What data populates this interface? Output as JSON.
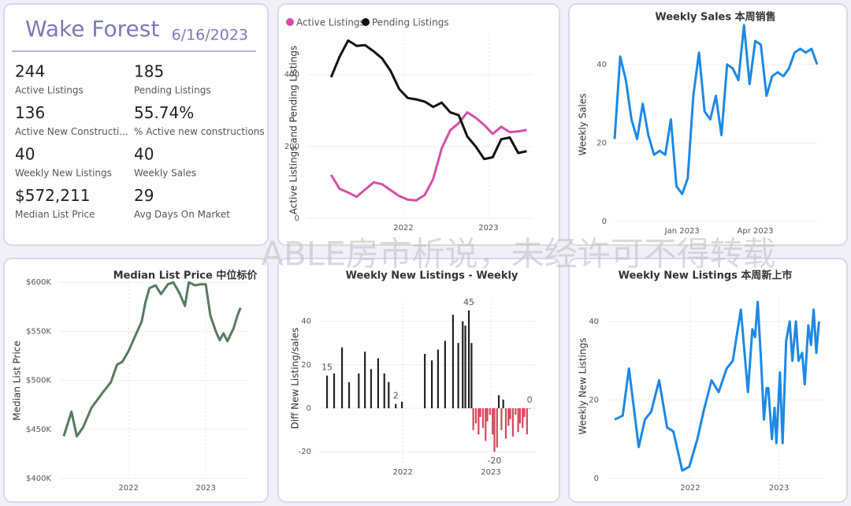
{
  "watermark": "ABLE房市析说，未经许可不得转载",
  "kpi": {
    "title": "Wake Forest",
    "date": "6/16/2023",
    "items": [
      {
        "value": "244",
        "label": "Active Listings"
      },
      {
        "value": "185",
        "label": "Pending Listings"
      },
      {
        "value": "136",
        "label": "Active New Constructi..."
      },
      {
        "value": "55.74%",
        "label": "% Active new constructions"
      },
      {
        "value": "40",
        "label": "Weekly New Listings"
      },
      {
        "value": "40",
        "label": "Weekly Sales"
      },
      {
        "value": "$572,211",
        "label": "Median List Price"
      },
      {
        "value": "29",
        "label": "Avg Days On Market"
      }
    ]
  },
  "chart_data": [
    {
      "type": "line",
      "ylabel": "Active Listings and Pending Listings",
      "legend": "top-left",
      "grid": true,
      "x": [
        2021.15,
        2021.25,
        2021.35,
        2021.45,
        2021.55,
        2021.65,
        2021.75,
        2021.85,
        2021.95,
        2022.05,
        2022.15,
        2022.25,
        2022.35,
        2022.45,
        2022.55,
        2022.65,
        2022.75,
        2022.85,
        2022.95,
        2023.05,
        2023.15,
        2023.25,
        2023.35,
        2023.45
      ],
      "series": [
        {
          "name": "Active Listings",
          "color": "#d34fa5",
          "values": [
            121,
            82,
            72,
            60,
            80,
            100,
            95,
            78,
            62,
            52,
            50,
            65,
            110,
            195,
            245,
            265,
            295,
            280,
            260,
            235,
            255,
            240,
            242,
            246
          ]
        },
        {
          "name": "Pending Listings",
          "color": "#111111",
          "values": [
            393,
            450,
            495,
            480,
            482,
            465,
            445,
            410,
            360,
            335,
            331,
            325,
            310,
            322,
            295,
            287,
            228,
            200,
            165,
            170,
            220,
            225,
            182,
            187
          ]
        }
      ],
      "xlim": [
        2020.87,
        2023.51
      ],
      "xticks": [
        2022,
        2023
      ],
      "ylim": [
        0,
        520
      ],
      "yticks": [
        0,
        200,
        400
      ]
    },
    {
      "type": "line",
      "title": "Weekly Sales 本周销售",
      "ylabel": "Weekly Sales",
      "grid": true,
      "categories": [
        null,
        null,
        null,
        null,
        null,
        null,
        null,
        null,
        null,
        null,
        null,
        null,
        "Jan 2023",
        null,
        null,
        null,
        null,
        null,
        null,
        null,
        null,
        null,
        null,
        null,
        null,
        "Apr 2023",
        null,
        null,
        null,
        null,
        null,
        null,
        null,
        null,
        null,
        null,
        null
      ],
      "series": [
        {
          "name": "Weekly Sales",
          "color": "#1e88e5",
          "values": [
            21,
            42,
            36,
            26,
            21,
            30,
            22,
            17,
            18,
            17,
            26,
            9,
            7,
            11,
            32,
            43,
            28,
            26,
            32,
            22,
            40,
            39,
            36,
            50,
            35,
            46,
            45,
            32,
            37,
            38,
            37,
            39,
            43,
            44,
            43,
            44,
            40
          ]
        }
      ],
      "ylim": [
        0,
        51
      ],
      "yticks": [
        0,
        20,
        40
      ]
    },
    {
      "type": "line",
      "title": "Median List Price  中位标价",
      "ylabel": "Median List Price",
      "grid": true,
      "x": [
        2021.16,
        2021.26,
        2021.33,
        2021.41,
        2021.52,
        2021.67,
        2021.77,
        2021.85,
        2021.92,
        2022,
        2022.09,
        2022.17,
        2022.22,
        2022.27,
        2022.35,
        2022.42,
        2022.51,
        2022.58,
        2022.66,
        2022.73,
        2022.78,
        2022.86,
        2022.93,
        2023,
        2023.06,
        2023.13,
        2023.18,
        2023.23,
        2023.28,
        2023.36,
        2023.41,
        2023.45
      ],
      "series": [
        {
          "name": "Median List Price",
          "color": "#587a5e",
          "values": [
            443000,
            468000,
            443000,
            452000,
            472000,
            488000,
            498000,
            516000,
            519000,
            530000,
            546000,
            560000,
            580000,
            594000,
            597000,
            588000,
            598000,
            600000,
            589000,
            576000,
            600000,
            597000,
            598000,
            598000,
            566000,
            550000,
            541000,
            548000,
            540000,
            553000,
            566000,
            574000
          ]
        }
      ],
      "xlim": [
        2021.1,
        2023.55
      ],
      "xticks": [
        2022,
        2023
      ],
      "ylim": [
        400000,
        605000
      ],
      "yticks": [
        {
          "value": 400000,
          "label": "$400K"
        },
        {
          "value": 450000,
          "label": "$450K"
        },
        {
          "value": 500000,
          "label": "$500K"
        },
        {
          "value": 550000,
          "label": "$550K"
        },
        {
          "value": 600000,
          "label": "$600K"
        }
      ]
    },
    {
      "type": "bar",
      "title": "Weekly New Listings - Weekly",
      "ylabel": "Diff New Listing/sales",
      "color": "#222222",
      "negative_color": "#d6455a",
      "grid": true,
      "x": [
        2021.14,
        2021.22,
        2021.31,
        2021.39,
        2021.5,
        2021.57,
        2021.64,
        2021.72,
        2021.79,
        2021.84,
        2021.92,
        2021.99,
        2022.25,
        2022.33,
        2022.4,
        2022.48,
        2022.57,
        2022.63,
        2022.68,
        2022.71,
        2022.75,
        2022.78,
        2022.8,
        2022.83,
        2022.86,
        2022.88,
        2022.91,
        2022.94,
        2022.96,
        2022.99,
        2023.02,
        2023.04,
        2023.07,
        2023.09,
        2023.12,
        2023.14,
        2023.17,
        2023.2,
        2023.22,
        2023.25,
        2023.28,
        2023.31,
        2023.33,
        2023.36,
        2023.38,
        2023.41,
        2023.44
      ],
      "values": [
        15,
        16,
        28,
        12,
        16,
        26,
        18,
        23,
        16,
        12,
        2,
        3,
        25,
        22,
        27,
        31,
        43,
        30,
        40,
        38,
        45,
        30,
        -10,
        -7,
        -12,
        -4,
        -9,
        -15,
        -6,
        -3,
        -12,
        -20,
        -18,
        6,
        -10,
        4,
        -14,
        -8,
        -5,
        -13,
        -3,
        -11,
        -7,
        -9,
        -4,
        -12,
        0
      ],
      "value_labels": [
        "15",
        null,
        null,
        null,
        null,
        null,
        null,
        null,
        null,
        null,
        "2",
        null,
        null,
        null,
        null,
        null,
        null,
        null,
        null,
        null,
        "45",
        null,
        null,
        null,
        null,
        null,
        null,
        null,
        null,
        null,
        null,
        "-20",
        null,
        null,
        null,
        null,
        null,
        null,
        null,
        null,
        null,
        null,
        null,
        null,
        null,
        null,
        "0"
      ],
      "xlim": [
        2021.05,
        2023.51
      ],
      "xticks": [
        2022,
        2023
      ],
      "ylim": [
        -25,
        50
      ],
      "yticks": [
        -20,
        0,
        20,
        40
      ]
    },
    {
      "type": "line",
      "title": "Weekly New Listings  本周新上市",
      "ylabel": "Weekly New Listings",
      "grid": true,
      "x": [
        2021.15,
        2021.24,
        2021.31,
        2021.42,
        2021.49,
        2021.56,
        2021.65,
        2021.74,
        2021.81,
        2021.91,
        2021.99,
        2022.08,
        2022.15,
        2022.24,
        2022.32,
        2022.41,
        2022.48,
        2022.57,
        2022.65,
        2022.7,
        2022.73,
        2022.76,
        2022.8,
        2022.83,
        2022.86,
        2022.88,
        2022.92,
        2022.95,
        2022.97,
        2023.01,
        2023.04,
        2023.08,
        2023.12,
        2023.15,
        2023.19,
        2023.22,
        2023.26,
        2023.29,
        2023.33,
        2023.36,
        2023.39,
        2023.42,
        2023.45
      ],
      "series": [
        {
          "name": "Weekly New Listings",
          "color": "#1e88e5",
          "values": [
            15,
            16,
            28,
            8,
            15,
            17,
            25,
            13,
            12,
            2,
            3,
            10,
            17,
            25,
            22,
            28,
            30,
            43,
            22,
            38,
            36,
            45,
            29,
            15,
            23,
            23,
            10,
            18,
            9,
            27,
            9,
            35,
            40,
            30,
            40,
            30,
            32,
            24,
            39,
            34,
            43,
            32,
            40
          ]
        }
      ],
      "xlim": [
        2021.06,
        2023.5
      ],
      "xticks": [
        2022,
        2023
      ],
      "ylim": [
        0,
        46
      ],
      "yticks": [
        0,
        20,
        40
      ]
    }
  ]
}
